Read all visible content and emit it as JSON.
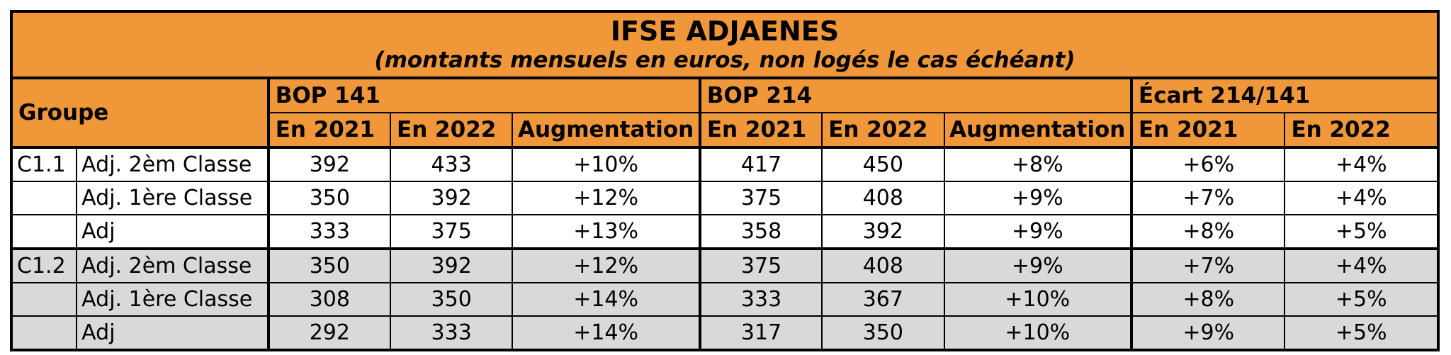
{
  "title": "IFSE ADJAENES",
  "subtitle": "(montants mensuels en euros, non logés le cas échéant)",
  "header": {
    "groupe": "Groupe",
    "bop141": "BOP 141",
    "bop214": "BOP 214",
    "ecart": "Écart 214/141",
    "sub": [
      "En 2021",
      "En 2022",
      "Augmentation",
      "En 2021",
      "En 2022",
      "Augmentation",
      "En 2021",
      "En 2022"
    ]
  },
  "rows": [
    {
      "group": "C1.1",
      "class": "Adj. 2èm Classe",
      "values": [
        "392",
        "433",
        "+10%",
        "417",
        "450",
        "+8%",
        "+6%",
        "+4%"
      ]
    },
    {
      "group": "",
      "class": "Adj. 1ère Classe",
      "values": [
        "350",
        "392",
        "+12%",
        "375",
        "408",
        "+9%",
        "+7%",
        "+4%"
      ]
    },
    {
      "group": "",
      "class": "Adj",
      "values": [
        "333",
        "375",
        "+13%",
        "358",
        "392",
        "+9%",
        "+8%",
        "+5%"
      ]
    },
    {
      "group": "C1.2",
      "class": "Adj. 2èm Classe",
      "values": [
        "350",
        "392",
        "+12%",
        "375",
        "408",
        "+9%",
        "+7%",
        "+4%"
      ]
    },
    {
      "group": "",
      "class": "Adj. 1ère Classe",
      "values": [
        "308",
        "350",
        "+14%",
        "333",
        "367",
        "+10%",
        "+8%",
        "+5%"
      ]
    },
    {
      "group": "",
      "class": "Adj",
      "values": [
        "292",
        "333",
        "+14%",
        "317",
        "350",
        "+10%",
        "+9%",
        "+5%"
      ]
    }
  ]
}
